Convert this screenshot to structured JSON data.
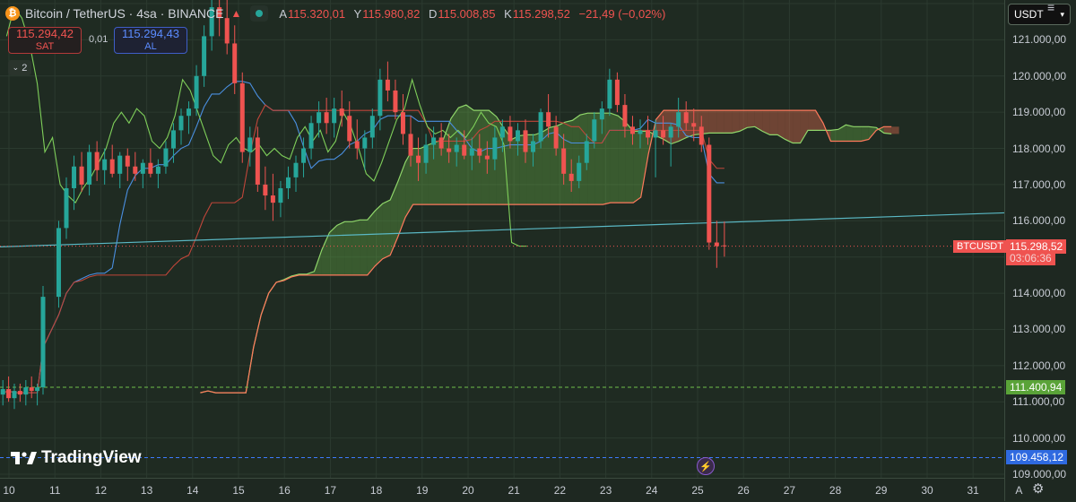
{
  "header": {
    "title": "Bitcoin / TetherUS · 4sa · BINANCE",
    "open_key": "A",
    "open": "115.320,01",
    "high_key": "Y",
    "high": "115.980,82",
    "low_key": "D",
    "low": "115.008,85",
    "close_key": "K",
    "close": "115.298,52",
    "change": "−21,49 (−0,02%)"
  },
  "trade": {
    "sell_price": "115.294,42",
    "sell_label": "SAT",
    "spread": "0,01",
    "buy_price": "115.294,43",
    "buy_label": "AL"
  },
  "indicators_toggle": "2",
  "currency": "USDT",
  "logo_text": "TradingView",
  "price_axis": {
    "ticks": [
      "121.000,00",
      "120.000,00",
      "119.000,00",
      "118.000,00",
      "117.000,00",
      "116.000,00",
      "114.000,00",
      "113.000,00",
      "112.000,00",
      "111.000,00",
      "110.000,00",
      "109.000,00"
    ],
    "symbol_label": "BTCUSDT",
    "last_price": "115.298,52",
    "countdown": "03:06:36",
    "green_level": "111.400,94",
    "blue_level": "109.458,12"
  },
  "time_axis": {
    "ticks": [
      "10",
      "11",
      "12",
      "13",
      "14",
      "15",
      "16",
      "17",
      "18",
      "19",
      "20",
      "21",
      "22",
      "23",
      "24",
      "25",
      "26",
      "27",
      "28",
      "29",
      "30",
      "31",
      "A"
    ]
  },
  "chart_data": {
    "type": "candlestick",
    "symbol": "BTCUSDT",
    "interval": "4h",
    "y_range": [
      108900,
      122100
    ],
    "x_categories": [
      "10",
      "11",
      "12",
      "13",
      "14",
      "15",
      "16",
      "17",
      "18",
      "19",
      "20",
      "21",
      "22",
      "23",
      "24",
      "25",
      "26",
      "27",
      "28",
      "29",
      "30",
      "31"
    ],
    "candles": [
      {
        "d": "10",
        "o": 111200,
        "h": 111600,
        "l": 110900,
        "c": 111350
      },
      {
        "d": "10",
        "o": 111350,
        "h": 111700,
        "l": 111000,
        "c": 111100
      },
      {
        "d": "10",
        "o": 111100,
        "h": 111500,
        "l": 110800,
        "c": 111300
      },
      {
        "d": "10",
        "o": 111300,
        "h": 111500,
        "l": 111000,
        "c": 111200
      },
      {
        "d": "10",
        "o": 111200,
        "h": 111600,
        "l": 110900,
        "c": 111400
      },
      {
        "d": "10",
        "o": 111400,
        "h": 111700,
        "l": 111100,
        "c": 111300
      },
      {
        "d": "10",
        "o": 111300,
        "h": 111500,
        "l": 110900,
        "c": 111400
      },
      {
        "d": "10",
        "o": 111400,
        "h": 114200,
        "l": 111200,
        "c": 113900
      },
      {
        "d": "11",
        "o": 113900,
        "h": 116000,
        "l": 113600,
        "c": 115800
      },
      {
        "d": "11",
        "o": 115800,
        "h": 117200,
        "l": 115500,
        "c": 116900
      },
      {
        "d": "11",
        "o": 116900,
        "h": 117800,
        "l": 116300,
        "c": 117500
      },
      {
        "d": "11",
        "o": 117500,
        "h": 117900,
        "l": 116800,
        "c": 117000
      },
      {
        "d": "11",
        "o": 117000,
        "h": 118100,
        "l": 116700,
        "c": 117900
      },
      {
        "d": "11",
        "o": 117900,
        "h": 118200,
        "l": 117100,
        "c": 117400
      },
      {
        "d": "12",
        "o": 117400,
        "h": 118000,
        "l": 117000,
        "c": 117700
      },
      {
        "d": "12",
        "o": 117700,
        "h": 118100,
        "l": 117200,
        "c": 117300
      },
      {
        "d": "12",
        "o": 117300,
        "h": 117900,
        "l": 116900,
        "c": 117800
      },
      {
        "d": "12",
        "o": 117800,
        "h": 118000,
        "l": 117100,
        "c": 117500
      },
      {
        "d": "12",
        "o": 117500,
        "h": 117900,
        "l": 117100,
        "c": 117300
      },
      {
        "d": "12",
        "o": 117300,
        "h": 117700,
        "l": 116900,
        "c": 117600
      },
      {
        "d": "13",
        "o": 117600,
        "h": 118000,
        "l": 117200,
        "c": 117300
      },
      {
        "d": "13",
        "o": 117300,
        "h": 117700,
        "l": 116900,
        "c": 117500
      },
      {
        "d": "13",
        "o": 117500,
        "h": 118200,
        "l": 117300,
        "c": 118000
      },
      {
        "d": "13",
        "o": 118000,
        "h": 118700,
        "l": 117600,
        "c": 118500
      },
      {
        "d": "13",
        "o": 118500,
        "h": 119100,
        "l": 118100,
        "c": 118900
      },
      {
        "d": "13",
        "o": 118900,
        "h": 119300,
        "l": 118400,
        "c": 119100
      },
      {
        "d": "14",
        "o": 119100,
        "h": 120300,
        "l": 118900,
        "c": 120000
      },
      {
        "d": "14",
        "o": 120000,
        "h": 121400,
        "l": 119700,
        "c": 121100
      },
      {
        "d": "14",
        "o": 121100,
        "h": 122100,
        "l": 120700,
        "c": 121900
      },
      {
        "d": "14",
        "o": 121900,
        "h": 122100,
        "l": 121100,
        "c": 121600
      },
      {
        "d": "14",
        "o": 121600,
        "h": 122100,
        "l": 120600,
        "c": 120900
      },
      {
        "d": "14",
        "o": 120900,
        "h": 121400,
        "l": 119500,
        "c": 119800
      },
      {
        "d": "15",
        "o": 119800,
        "h": 120100,
        "l": 117600,
        "c": 117900
      },
      {
        "d": "15",
        "o": 117900,
        "h": 118600,
        "l": 117500,
        "c": 118300
      },
      {
        "d": "15",
        "o": 118300,
        "h": 118600,
        "l": 116800,
        "c": 117000
      },
      {
        "d": "15",
        "o": 117000,
        "h": 117500,
        "l": 116300,
        "c": 116700
      },
      {
        "d": "15",
        "o": 116700,
        "h": 117300,
        "l": 116000,
        "c": 116500
      },
      {
        "d": "15",
        "o": 116500,
        "h": 117100,
        "l": 116100,
        "c": 116900
      },
      {
        "d": "16",
        "o": 116900,
        "h": 117500,
        "l": 116600,
        "c": 117200
      },
      {
        "d": "16",
        "o": 117200,
        "h": 117800,
        "l": 116800,
        "c": 117600
      },
      {
        "d": "16",
        "o": 117600,
        "h": 118300,
        "l": 117200,
        "c": 118000
      },
      {
        "d": "16",
        "o": 118000,
        "h": 118900,
        "l": 117700,
        "c": 118700
      },
      {
        "d": "16",
        "o": 118700,
        "h": 119300,
        "l": 118300,
        "c": 119000
      },
      {
        "d": "16",
        "o": 119000,
        "h": 119400,
        "l": 118400,
        "c": 118700
      },
      {
        "d": "17",
        "o": 118700,
        "h": 119400,
        "l": 118300,
        "c": 119100
      },
      {
        "d": "17",
        "o": 119100,
        "h": 119600,
        "l": 118600,
        "c": 118900
      },
      {
        "d": "17",
        "o": 118900,
        "h": 119300,
        "l": 118000,
        "c": 118200
      },
      {
        "d": "17",
        "o": 118200,
        "h": 118800,
        "l": 117700,
        "c": 118000
      },
      {
        "d": "17",
        "o": 118000,
        "h": 118500,
        "l": 117400,
        "c": 118300
      },
      {
        "d": "17",
        "o": 118300,
        "h": 119100,
        "l": 118000,
        "c": 118900
      },
      {
        "d": "18",
        "o": 118900,
        "h": 120200,
        "l": 118500,
        "c": 119900
      },
      {
        "d": "18",
        "o": 119900,
        "h": 120400,
        "l": 119300,
        "c": 119600
      },
      {
        "d": "18",
        "o": 119600,
        "h": 119900,
        "l": 118800,
        "c": 119000
      },
      {
        "d": "18",
        "o": 119000,
        "h": 119500,
        "l": 118100,
        "c": 118400
      },
      {
        "d": "18",
        "o": 118400,
        "h": 118900,
        "l": 117500,
        "c": 117800
      },
      {
        "d": "18",
        "o": 117800,
        "h": 118300,
        "l": 117100,
        "c": 117600
      },
      {
        "d": "19",
        "o": 117600,
        "h": 118400,
        "l": 117300,
        "c": 118100
      },
      {
        "d": "19",
        "o": 118100,
        "h": 118600,
        "l": 117700,
        "c": 118300
      },
      {
        "d": "19",
        "o": 118300,
        "h": 118700,
        "l": 117800,
        "c": 118000
      },
      {
        "d": "19",
        "o": 118000,
        "h": 118400,
        "l": 117600,
        "c": 117900
      },
      {
        "d": "19",
        "o": 117900,
        "h": 118300,
        "l": 117500,
        "c": 118100
      },
      {
        "d": "19",
        "o": 118100,
        "h": 118500,
        "l": 117700,
        "c": 117800
      },
      {
        "d": "20",
        "o": 117800,
        "h": 118300,
        "l": 117400,
        "c": 118000
      },
      {
        "d": "20",
        "o": 118000,
        "h": 118400,
        "l": 117600,
        "c": 117800
      },
      {
        "d": "20",
        "o": 117800,
        "h": 118200,
        "l": 117300,
        "c": 117700
      },
      {
        "d": "20",
        "o": 117700,
        "h": 118600,
        "l": 117400,
        "c": 118300
      },
      {
        "d": "20",
        "o": 118300,
        "h": 118800,
        "l": 117900,
        "c": 118600
      },
      {
        "d": "20",
        "o": 118600,
        "h": 118900,
        "l": 118000,
        "c": 118200
      },
      {
        "d": "21",
        "o": 118200,
        "h": 118700,
        "l": 117800,
        "c": 118500
      },
      {
        "d": "21",
        "o": 118500,
        "h": 118800,
        "l": 117600,
        "c": 117900
      },
      {
        "d": "21",
        "o": 117900,
        "h": 118400,
        "l": 117500,
        "c": 118200
      },
      {
        "d": "21",
        "o": 118200,
        "h": 119100,
        "l": 118000,
        "c": 119000
      },
      {
        "d": "21",
        "o": 119000,
        "h": 119500,
        "l": 118300,
        "c": 118600
      },
      {
        "d": "21",
        "o": 118600,
        "h": 118900,
        "l": 117800,
        "c": 118000
      },
      {
        "d": "22",
        "o": 118000,
        "h": 118400,
        "l": 117000,
        "c": 117300
      },
      {
        "d": "22",
        "o": 117300,
        "h": 117700,
        "l": 116800,
        "c": 117100
      },
      {
        "d": "22",
        "o": 117100,
        "h": 117800,
        "l": 116900,
        "c": 117600
      },
      {
        "d": "22",
        "o": 117600,
        "h": 118400,
        "l": 117400,
        "c": 118200
      },
      {
        "d": "22",
        "o": 118200,
        "h": 119000,
        "l": 118000,
        "c": 118800
      },
      {
        "d": "22",
        "o": 118800,
        "h": 119300,
        "l": 118400,
        "c": 119100
      },
      {
        "d": "23",
        "o": 119100,
        "h": 120200,
        "l": 118900,
        "c": 119900
      },
      {
        "d": "23",
        "o": 119900,
        "h": 120100,
        "l": 119000,
        "c": 119200
      },
      {
        "d": "23",
        "o": 119200,
        "h": 119500,
        "l": 118300,
        "c": 118600
      },
      {
        "d": "23",
        "o": 118600,
        "h": 118900,
        "l": 118100,
        "c": 118400
      },
      {
        "d": "23",
        "o": 118400,
        "h": 118800,
        "l": 118000,
        "c": 118500
      },
      {
        "d": "23",
        "o": 118500,
        "h": 118900,
        "l": 118100,
        "c": 118300
      },
      {
        "d": "24",
        "o": 118300,
        "h": 118800,
        "l": 117200,
        "c": 118500
      },
      {
        "d": "24",
        "o": 118500,
        "h": 118900,
        "l": 118100,
        "c": 118300
      },
      {
        "d": "24",
        "o": 118300,
        "h": 118700,
        "l": 117500,
        "c": 118600
      },
      {
        "d": "24",
        "o": 118600,
        "h": 119400,
        "l": 118300,
        "c": 119000
      },
      {
        "d": "24",
        "o": 119000,
        "h": 119300,
        "l": 118500,
        "c": 118700
      },
      {
        "d": "24",
        "o": 118700,
        "h": 119100,
        "l": 118200,
        "c": 118600
      },
      {
        "d": "25",
        "o": 118600,
        "h": 118900,
        "l": 117900,
        "c": 118100
      },
      {
        "d": "25",
        "o": 118100,
        "h": 118300,
        "l": 115200,
        "c": 115400
      },
      {
        "d": "25",
        "o": 115400,
        "h": 116000,
        "l": 114700,
        "c": 115300
      },
      {
        "d": "25",
        "o": 115320.01,
        "h": 115980.82,
        "l": 115008.85,
        "c": 115298.52
      }
    ],
    "last_price": 115298.52,
    "horizontal_levels": [
      {
        "value": 111400.94,
        "color": "#6fbf4a",
        "style": "dashed"
      },
      {
        "value": 109458.12,
        "color": "#3d7bff",
        "style": "dashed"
      }
    ],
    "trendline": {
      "from_value": 115280,
      "to_value": 116220,
      "color": "#5ab8c4"
    },
    "colors": {
      "up": "#26a69a",
      "down": "#ef5350",
      "kumo_bull": "#6fbf4a",
      "kumo_bear": "#ef6e52"
    }
  }
}
